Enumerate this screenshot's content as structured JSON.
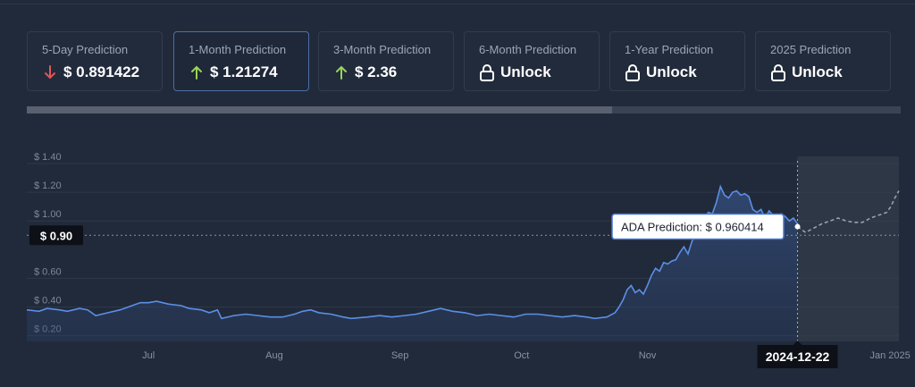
{
  "cards": [
    {
      "label": "5-Day Prediction",
      "value": "$ 0.891422",
      "icon": "arrow-down-icon",
      "icon_color": "#e2555a"
    },
    {
      "label": "1-Month Prediction",
      "value": "$ 1.21274",
      "icon": "arrow-up-icon",
      "icon_color": "#9bd35a",
      "active": true
    },
    {
      "label": "3-Month Prediction",
      "value": "$ 2.36",
      "icon": "arrow-up-icon",
      "icon_color": "#9bd35a"
    },
    {
      "label": "6-Month Prediction",
      "value": "Unlock",
      "icon": "lock-icon",
      "icon_color": "#ffffff"
    },
    {
      "label": "1-Year Prediction",
      "value": "Unlock",
      "icon": "lock-icon",
      "icon_color": "#ffffff"
    },
    {
      "label": "2025 Prediction",
      "value": "Unlock",
      "icon": "lock-icon",
      "icon_color": "#ffffff"
    }
  ],
  "chart_data": {
    "type": "line",
    "ylim": [
      0.16,
      1.45
    ],
    "ytick_values": [
      0.2,
      0.4,
      0.6,
      1.0,
      1.2,
      1.4
    ],
    "ytick_labels": [
      "$ 0.20",
      "$ 0.40",
      "$ 0.60",
      "$ 1.00",
      "$ 1.20",
      "$ 1.40"
    ],
    "xlim": [
      0,
      215
    ],
    "xticks": [
      {
        "label": "Jul",
        "x": 30
      },
      {
        "label": "Aug",
        "x": 61
      },
      {
        "label": "Sep",
        "x": 92
      },
      {
        "label": "Oct",
        "x": 122
      },
      {
        "label": "Nov",
        "x": 153
      },
      {
        "label": "Jan 2025",
        "x": 214
      }
    ],
    "series": [
      {
        "role": "history",
        "color": "#5b8fe6",
        "points": [
          [
            0,
            0.38
          ],
          [
            3,
            0.37
          ],
          [
            5,
            0.39
          ],
          [
            8,
            0.38
          ],
          [
            10,
            0.37
          ],
          [
            13,
            0.39
          ],
          [
            15,
            0.38
          ],
          [
            17,
            0.34
          ],
          [
            20,
            0.36
          ],
          [
            23,
            0.38
          ],
          [
            26,
            0.41
          ],
          [
            28,
            0.43
          ],
          [
            30,
            0.43
          ],
          [
            32,
            0.44
          ],
          [
            35,
            0.42
          ],
          [
            38,
            0.41
          ],
          [
            40,
            0.39
          ],
          [
            43,
            0.38
          ],
          [
            45,
            0.36
          ],
          [
            47,
            0.38
          ],
          [
            48,
            0.32
          ],
          [
            51,
            0.34
          ],
          [
            54,
            0.35
          ],
          [
            57,
            0.34
          ],
          [
            60,
            0.33
          ],
          [
            63,
            0.33
          ],
          [
            66,
            0.35
          ],
          [
            68,
            0.37
          ],
          [
            70,
            0.38
          ],
          [
            72,
            0.36
          ],
          [
            75,
            0.35
          ],
          [
            78,
            0.33
          ],
          [
            80,
            0.32
          ],
          [
            84,
            0.33
          ],
          [
            87,
            0.34
          ],
          [
            90,
            0.33
          ],
          [
            93,
            0.34
          ],
          [
            96,
            0.35
          ],
          [
            99,
            0.37
          ],
          [
            102,
            0.39
          ],
          [
            105,
            0.37
          ],
          [
            108,
            0.36
          ],
          [
            111,
            0.34
          ],
          [
            114,
            0.35
          ],
          [
            117,
            0.34
          ],
          [
            120,
            0.33
          ],
          [
            123,
            0.35
          ],
          [
            126,
            0.35
          ],
          [
            129,
            0.34
          ],
          [
            132,
            0.33
          ],
          [
            135,
            0.34
          ],
          [
            138,
            0.33
          ],
          [
            140,
            0.32
          ],
          [
            143,
            0.33
          ],
          [
            145,
            0.36
          ],
          [
            146,
            0.4
          ],
          [
            147,
            0.45
          ],
          [
            148,
            0.52
          ],
          [
            149,
            0.55
          ],
          [
            150,
            0.5
          ],
          [
            151,
            0.52
          ],
          [
            152,
            0.49
          ],
          [
            153,
            0.55
          ],
          [
            154,
            0.62
          ],
          [
            155,
            0.67
          ],
          [
            156,
            0.65
          ],
          [
            157,
            0.71
          ],
          [
            158,
            0.7
          ],
          [
            159,
            0.72
          ],
          [
            160,
            0.73
          ],
          [
            161,
            0.78
          ],
          [
            162,
            0.82
          ],
          [
            163,
            0.77
          ],
          [
            164,
            0.86
          ],
          [
            165,
            0.9
          ],
          [
            166,
            0.95
          ],
          [
            167,
            1.02
          ],
          [
            168,
            1.06
          ],
          [
            169,
            1.05
          ],
          [
            170,
            1.13
          ],
          [
            171,
            1.24
          ],
          [
            172,
            1.18
          ],
          [
            173,
            1.16
          ],
          [
            174,
            1.2
          ],
          [
            175,
            1.21
          ],
          [
            176,
            1.18
          ],
          [
            177,
            1.19
          ],
          [
            178,
            1.17
          ],
          [
            179,
            1.08
          ],
          [
            180,
            1.06
          ],
          [
            181,
            1.08
          ],
          [
            182,
            1.02
          ],
          [
            183,
            1.07
          ],
          [
            184,
            1.04
          ],
          [
            185,
            1.02
          ],
          [
            186,
            1.05
          ],
          [
            187,
            1.03
          ],
          [
            188,
            1.0
          ],
          [
            189,
            1.02
          ],
          [
            190,
            0.98
          ]
        ]
      },
      {
        "role": "prediction",
        "color": "#9aa0aa",
        "points": [
          [
            190,
            0.96
          ],
          [
            192,
            0.92
          ],
          [
            194,
            0.95
          ],
          [
            196,
            0.98
          ],
          [
            198,
            1.0
          ],
          [
            200,
            1.02
          ],
          [
            202,
            1.0
          ],
          [
            204,
            0.99
          ],
          [
            206,
            0.99
          ],
          [
            208,
            1.02
          ],
          [
            210,
            1.04
          ],
          [
            212,
            1.06
          ],
          [
            213,
            1.1
          ],
          [
            214,
            1.16
          ],
          [
            215,
            1.21
          ]
        ]
      }
    ],
    "marker_x": 190,
    "marker_label": "2024-12-22",
    "ref_line_y": 0.9,
    "ref_line_label": "$ 0.90",
    "tooltip": "ADA Prediction: $ 0.960414",
    "tooltip_value": 0.960414
  }
}
